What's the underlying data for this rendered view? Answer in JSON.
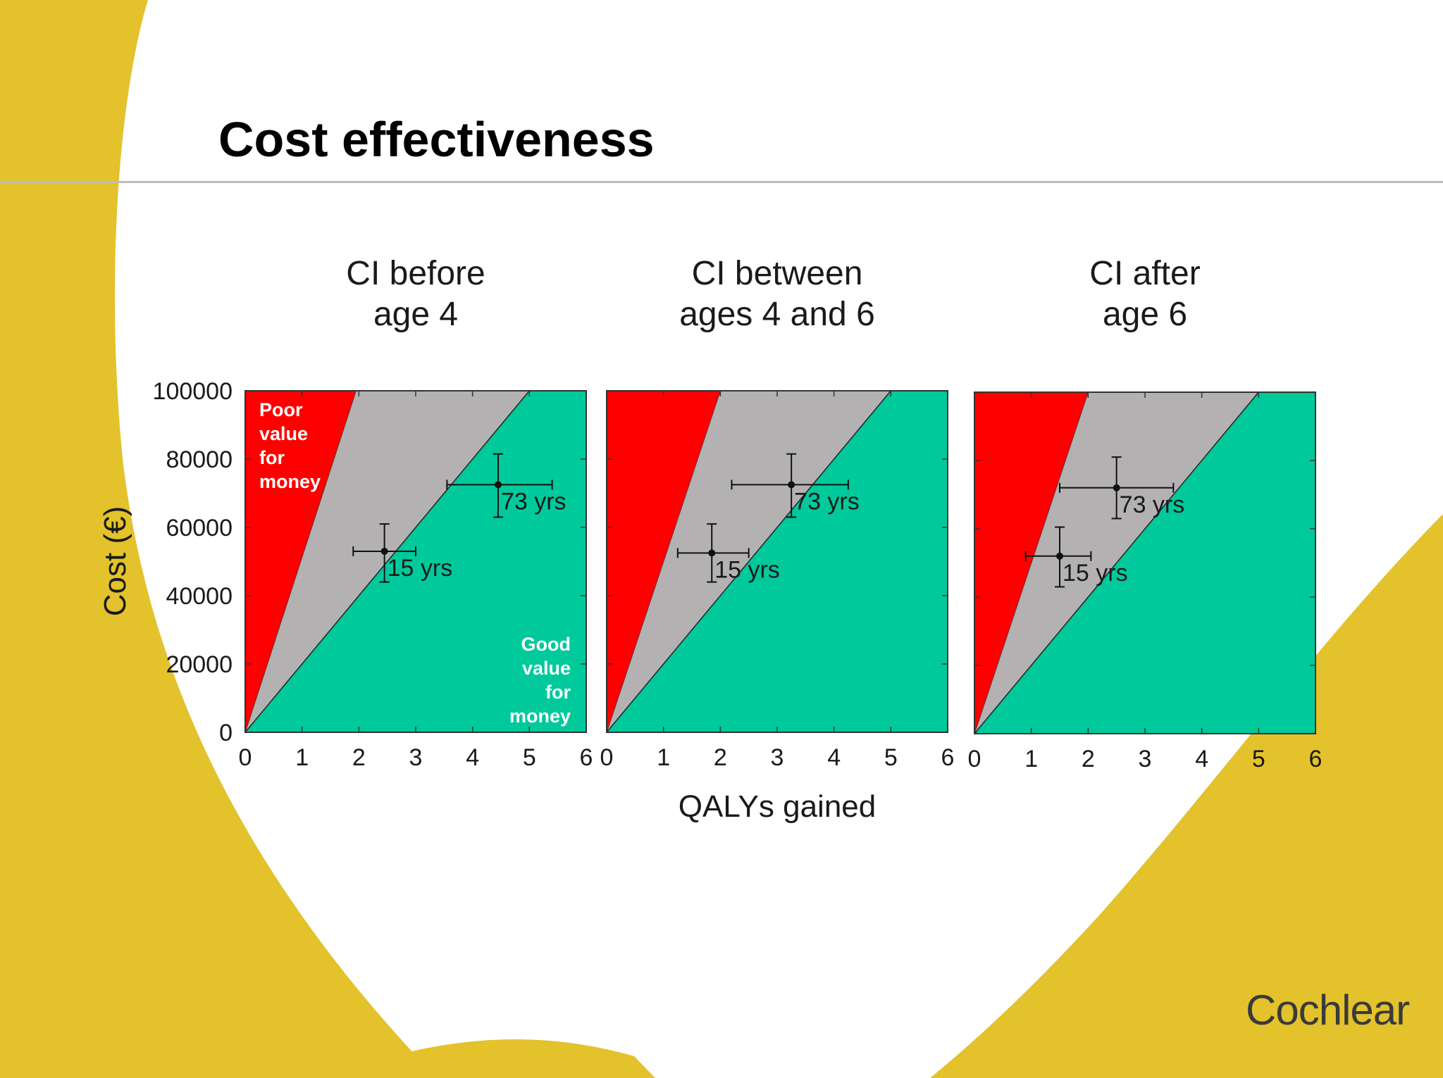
{
  "slide": {
    "title": "Cost effectiveness"
  },
  "colors": {
    "poor_value": "#ff0000",
    "uncertain": "#b3b1b2",
    "good_value": "#00c99b",
    "background_swoosh": "#e3c22c"
  },
  "chart_shared": {
    "ylabel": "Cost (€)",
    "xlabel": "QALYs gained",
    "region_labels": {
      "poor": [
        "Poor",
        "value",
        "for",
        "money"
      ],
      "good": [
        "Good",
        "value",
        "for",
        "money"
      ]
    }
  },
  "chart_data": [
    {
      "type": "scatter",
      "title": [
        "CI before",
        "age 4"
      ],
      "xlim": [
        0,
        6
      ],
      "ylim": [
        0,
        100000
      ],
      "xticks": [
        "0",
        "1",
        "2",
        "3",
        "4",
        "5",
        "6"
      ],
      "yticks": [
        "0",
        "20000",
        "40000",
        "60000",
        "80000",
        "100000"
      ],
      "show_ytick_labels": true,
      "regions": {
        "poor_boundary_x_at_ymax": 1.95,
        "good_boundary_x_at_ymax": 5.0
      },
      "points": [
        {
          "label": "15 yrs",
          "x": 2.45,
          "y": 53000,
          "x_err": [
            1.9,
            3.0
          ],
          "y_err": [
            44000,
            61000
          ]
        },
        {
          "label": "73 yrs",
          "x": 4.45,
          "y": 72500,
          "x_err": [
            3.55,
            5.4
          ],
          "y_err": [
            63000,
            81500
          ]
        }
      ]
    },
    {
      "type": "scatter",
      "title": [
        "CI between",
        "ages 4 and 6"
      ],
      "xlim": [
        0,
        6
      ],
      "ylim": [
        0,
        100000
      ],
      "xticks": [
        "0",
        "1",
        "2",
        "3",
        "4",
        "5",
        "6"
      ],
      "yticks": [
        "0",
        "20000",
        "40000",
        "60000",
        "80000",
        "100000"
      ],
      "show_ytick_labels": false,
      "regions": {
        "poor_boundary_x_at_ymax": 2.0,
        "good_boundary_x_at_ymax": 5.0
      },
      "points": [
        {
          "label": "15 yrs",
          "x": 1.85,
          "y": 52500,
          "x_err": [
            1.25,
            2.5
          ],
          "y_err": [
            44000,
            61000
          ]
        },
        {
          "label": "73 yrs",
          "x": 3.25,
          "y": 72500,
          "x_err": [
            2.2,
            4.25
          ],
          "y_err": [
            63000,
            81500
          ]
        }
      ]
    },
    {
      "type": "scatter",
      "title": [
        "CI after",
        "age 6"
      ],
      "xlim": [
        0,
        6
      ],
      "ylim": [
        0,
        100000
      ],
      "xticks": [
        "0",
        "1",
        "2",
        "3",
        "4",
        "5",
        "6"
      ],
      "yticks": [
        "0",
        "20000",
        "40000",
        "60000",
        "80000",
        "100000"
      ],
      "show_ytick_labels": false,
      "regions": {
        "poor_boundary_x_at_ymax": 2.0,
        "good_boundary_x_at_ymax": 5.0
      },
      "points": [
        {
          "label": "15 yrs",
          "x": 1.5,
          "y": 52000,
          "x_err": [
            0.9,
            2.05
          ],
          "y_err": [
            43000,
            60500
          ]
        },
        {
          "label": "73 yrs",
          "x": 2.5,
          "y": 72000,
          "x_err": [
            1.5,
            3.5
          ],
          "y_err": [
            63000,
            81000
          ]
        }
      ]
    }
  ],
  "logo": {
    "text": "Cochlear"
  }
}
